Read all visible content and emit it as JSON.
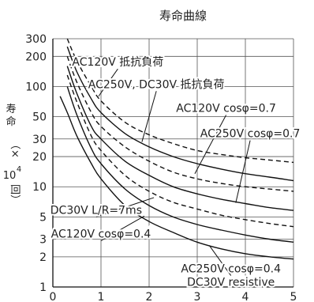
{
  "chart_data": {
    "type": "line",
    "title": "寿命曲線",
    "xlabel": "",
    "ylabel_parts": [
      "寿",
      "命",
      "（×",
      "10",
      "4",
      "回）"
    ],
    "xlim": [
      0,
      5
    ],
    "ylim": [
      1,
      300
    ],
    "y_scale": "log",
    "grid": true,
    "x_ticks": [
      "0",
      "1",
      "2",
      "3",
      "4",
      "5"
    ],
    "y_ticks": [
      {
        "value": 300,
        "label": "300"
      },
      {
        "value": 200,
        "label": "200"
      },
      {
        "value": 100,
        "label": "100"
      },
      {
        "value": 50,
        "label": "50"
      },
      {
        "value": 30,
        "label": "30"
      },
      {
        "value": 20,
        "label": "20"
      },
      {
        "value": 10,
        "label": "10"
      },
      {
        "value": 5,
        "label": "5"
      },
      {
        "value": 3,
        "label": "3"
      },
      {
        "value": 2,
        "label": "2"
      },
      {
        "value": 1,
        "label": "1"
      }
    ],
    "series": [
      {
        "name": "AC120V 抵抗負荷",
        "dash": true,
        "x": [
          0.3,
          0.5,
          0.8,
          1.0,
          1.5,
          2.0,
          2.5,
          3.0,
          3.5,
          4.0,
          4.5,
          5.0
        ],
        "y": [
          300,
          180,
          100,
          72,
          44,
          33,
          27,
          23,
          21,
          19.5,
          18.5,
          17.5
        ]
      },
      {
        "name": "AC250V, DC30V 抵抗負荷",
        "dash": false,
        "x": [
          0.3,
          0.5,
          0.8,
          1.0,
          1.5,
          2.0,
          2.5,
          3.0,
          3.5,
          4.0,
          4.5,
          5.0
        ],
        "y": [
          250,
          140,
          75,
          55,
          34,
          25,
          20,
          17,
          15,
          13.5,
          12.5,
          11.5
        ]
      },
      {
        "name": "AC120V cosφ=0.7",
        "dash": true,
        "x": [
          0.3,
          0.5,
          0.8,
          1.0,
          1.5,
          2.0,
          2.5,
          3.0,
          3.5,
          4.0,
          4.5,
          5.0
        ],
        "y": [
          200,
          110,
          55,
          40,
          25,
          18,
          14,
          12,
          10.8,
          10,
          9.5,
          9
        ]
      },
      {
        "name": "AC250V cosφ=0.7",
        "dash": false,
        "x": [
          0.3,
          0.5,
          0.8,
          1.0,
          1.5,
          2.0,
          2.5,
          3.0,
          3.5,
          4.0,
          4.5,
          5.0
        ],
        "y": [
          160,
          85,
          40,
          30,
          18,
          13,
          10,
          8.5,
          7.5,
          6.8,
          6.2,
          5.8
        ]
      },
      {
        "name": "DC30V L/R=7ms",
        "dash": true,
        "x": [
          0.3,
          0.5,
          0.8,
          1.0,
          1.5,
          2.0,
          2.5,
          3.0,
          3.5,
          4.0,
          4.5,
          5.0
        ],
        "y": [
          130,
          70,
          32,
          23,
          13,
          9,
          7,
          6,
          5.2,
          4.7,
          4.3,
          4.0
        ]
      },
      {
        "name": "AC120V cosφ=0.4",
        "dash": false,
        "x": [
          0.3,
          0.5,
          0.8,
          1.0,
          1.5,
          2.0,
          2.5,
          3.0,
          3.5,
          4.0,
          4.5,
          5.0
        ],
        "y": [
          100,
          52,
          24,
          17,
          9.5,
          6.5,
          5,
          4.2,
          3.7,
          3.3,
          3.0,
          2.8
        ]
      },
      {
        "name": "AC250V cosφ=0.4 / DC30V resistive",
        "dash": false,
        "x": [
          0.15,
          0.3,
          0.5,
          0.8,
          1.0,
          1.5,
          2.0,
          2.5,
          3.0,
          3.5,
          4.0,
          4.5,
          5.0
        ],
        "y": [
          80,
          55,
          32,
          17,
          12,
          6.5,
          4.5,
          3.5,
          2.8,
          2.4,
          2.15,
          2.0,
          1.9
        ]
      }
    ],
    "annotations": [
      {
        "id": "a1",
        "lines": [
          "AC120V 抵抗負荷"
        ],
        "anchor": [
          1.35,
          150
        ],
        "target": [
          0.95,
          80
        ]
      },
      {
        "id": "a2",
        "lines": [
          "AC250V, DC30V 抵抗負荷"
        ],
        "anchor": [
          2.15,
          90
        ],
        "target": [
          1.85,
          28
        ]
      },
      {
        "id": "a3",
        "lines": [
          "AC120V cosφ=0.7"
        ],
        "anchor": [
          3.6,
          52
        ],
        "target": [
          2.95,
          13.5
        ]
      },
      {
        "id": "a4",
        "lines": [
          "AC250V cosφ=0.7"
        ],
        "anchor": [
          4.1,
          29
        ],
        "target": [
          3.8,
          6.9
        ]
      },
      {
        "id": "a5",
        "lines": [
          "DC30V L/R=7ms"
        ],
        "anchor": [
          0.9,
          5
        ],
        "target": [
          2.1,
          7.8
        ]
      },
      {
        "id": "a6",
        "lines": [
          "AC120V cosφ=0.4"
        ],
        "anchor": [
          1.0,
          2.9
        ],
        "target": [
          1.9,
          5.1
        ]
      },
      {
        "id": "a7",
        "lines": [
          "AC250V cosφ=0.4",
          "DC30V resistive"
        ],
        "anchor": [
          3.7,
          1.3
        ],
        "target": [
          3.25,
          2.6
        ]
      }
    ]
  }
}
